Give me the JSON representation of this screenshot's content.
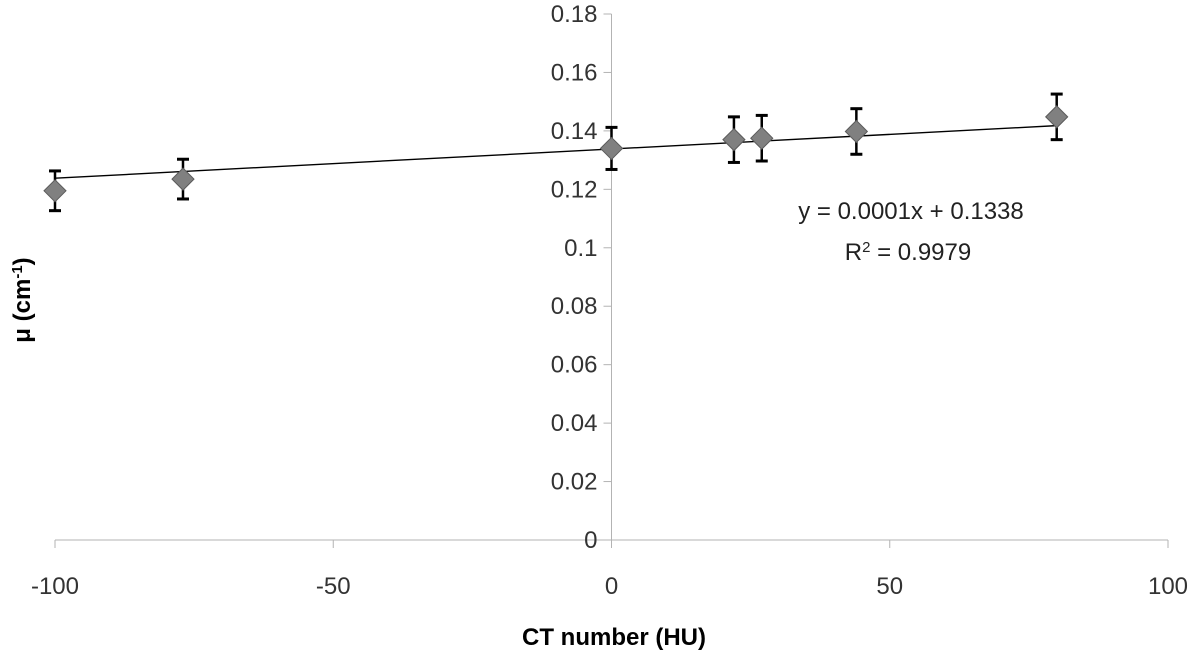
{
  "chart_data": {
    "type": "scatter",
    "title": "",
    "xlabel": "CT number (HU)",
    "ylabel": "μ (cm",
    "ylabel_sup": "-1",
    "ylabel_tail": ")",
    "xlim": [
      -100,
      100
    ],
    "ylim": [
      0,
      0.18
    ],
    "x_ticks": [
      -100,
      -50,
      0,
      50,
      100
    ],
    "x_tick_labels": [
      "-100",
      "-50",
      "0",
      "50",
      "100"
    ],
    "y_ticks": [
      0,
      0.02,
      0.04,
      0.06,
      0.08,
      0.1,
      0.12,
      0.14,
      0.16,
      0.18
    ],
    "y_tick_labels": [
      "0",
      "0.02",
      "0.04",
      "0.06",
      "0.08",
      "0.1",
      "0.12",
      "0.14",
      "0.16",
      "0.18"
    ],
    "grid": false,
    "marker": "diamond",
    "marker_color": "#808080",
    "line_color": "#000000",
    "series": [
      {
        "x": [
          -100,
          -77,
          0,
          22,
          27,
          44,
          80
        ],
        "y": [
          0.1195,
          0.1235,
          0.134,
          0.137,
          0.1375,
          0.1398,
          0.1448
        ],
        "error": [
          0.0068,
          0.0068,
          0.0072,
          0.0078,
          0.0078,
          0.0078,
          0.0078
        ]
      }
    ],
    "trendline": {
      "slope": 0.0001,
      "intercept": 0.1338,
      "x_range": [
        -100,
        80
      ],
      "equation_label": "y = 0.0001x + 0.1338",
      "r2_prefix": "R",
      "r2_sup": "2",
      "r2_suffix": " = 0.9979"
    }
  }
}
